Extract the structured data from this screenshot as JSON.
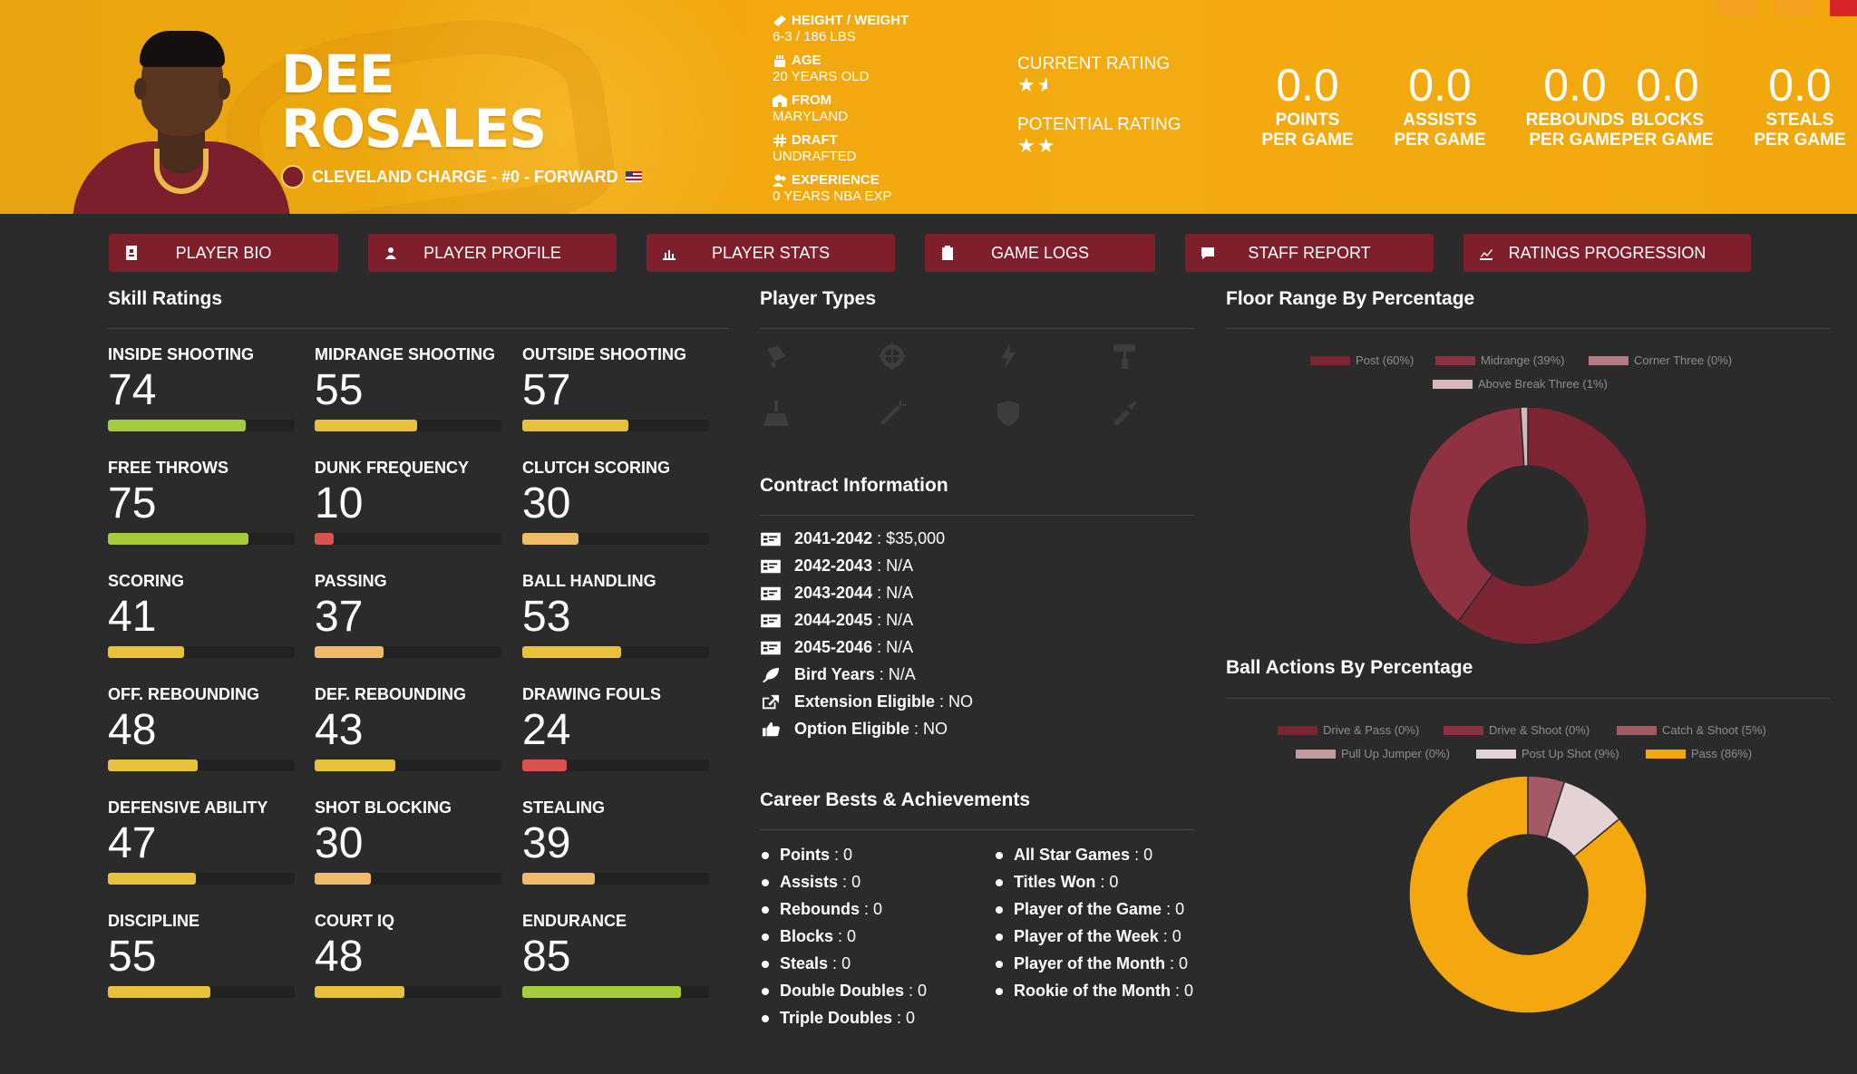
{
  "player": {
    "first_name": "DEE",
    "last_name": "ROSALES",
    "team_line": "CLEVELAND CHARGE - #0 - FORWARD"
  },
  "bio": [
    {
      "label": "HEIGHT / WEIGHT",
      "value": "6-3 / 186 LBS",
      "icon": "ruler-icon"
    },
    {
      "label": "AGE",
      "value": "20 YEARS OLD",
      "icon": "birthday-cake-icon"
    },
    {
      "label": "FROM",
      "value": "MARYLAND",
      "icon": "school-icon"
    },
    {
      "label": "DRAFT",
      "value": "UNDRAFTED",
      "icon": "hashtag-icon"
    },
    {
      "label": "EXPERIENCE",
      "value": "0 YEARS NBA EXP",
      "icon": "user-group-icon"
    }
  ],
  "ratings": {
    "current_label": "CURRENT RATING",
    "current_stars": 1.5,
    "potential_label": "POTENTIAL RATING",
    "potential_stars": 2
  },
  "stats": [
    {
      "value": "0.0",
      "line1": "POINTS",
      "line2": "PER GAME"
    },
    {
      "value": "0.0",
      "line1": "ASSISTS",
      "line2": "PER GAME"
    },
    {
      "value": "0.0",
      "line1": "REBOUNDS",
      "line2": "PER GAME"
    },
    {
      "value": "0.0",
      "line1": "BLOCKS",
      "line2": "PER GAME"
    },
    {
      "value": "0.0",
      "line1": "STEALS",
      "line2": "PER GAME"
    }
  ],
  "tabs": [
    {
      "label": "PLAYER BIO",
      "icon": "id-card-icon"
    },
    {
      "label": "PLAYER PROFILE",
      "icon": "users-icon"
    },
    {
      "label": "PLAYER STATS",
      "icon": "bar-chart-icon"
    },
    {
      "label": "GAME LOGS",
      "icon": "clipboard-icon"
    },
    {
      "label": "STAFF REPORT",
      "icon": "comment-icon"
    },
    {
      "label": "RATINGS PROGRESSION",
      "icon": "line-chart-icon"
    }
  ],
  "skills_title": "Skill Ratings",
  "skills": [
    {
      "name": "INSIDE SHOOTING",
      "value": "74",
      "color": "#a4cc3c"
    },
    {
      "name": "MIDRANGE SHOOTING",
      "value": "55",
      "color": "#e8c13c"
    },
    {
      "name": "OUTSIDE SHOOTING",
      "value": "57",
      "color": "#e8c13c"
    },
    {
      "name": "FREE THROWS",
      "value": "75",
      "color": "#a4cc3c"
    },
    {
      "name": "DUNK FREQUENCY",
      "value": "10",
      "color": "#d9534f"
    },
    {
      "name": "CLUTCH SCORING",
      "value": "30",
      "color": "#f0bb68"
    },
    {
      "name": "SCORING",
      "value": "41",
      "color": "#e8c13c"
    },
    {
      "name": "PASSING",
      "value": "37",
      "color": "#f0bb68"
    },
    {
      "name": "BALL HANDLING",
      "value": "53",
      "color": "#e8c13c"
    },
    {
      "name": "OFF. REBOUNDING",
      "value": "48",
      "color": "#e8c13c"
    },
    {
      "name": "DEF. REBOUNDING",
      "value": "43",
      "color": "#e8c13c"
    },
    {
      "name": "DRAWING FOULS",
      "value": "24",
      "color": "#d9534f"
    },
    {
      "name": "DEFENSIVE ABILITY",
      "value": "47",
      "color": "#e8c13c"
    },
    {
      "name": "SHOT BLOCKING",
      "value": "30",
      "color": "#f0bb68"
    },
    {
      "name": "STEALING",
      "value": "39",
      "color": "#f0bb68"
    },
    {
      "name": "DISCIPLINE",
      "value": "55",
      "color": "#e8c13c"
    },
    {
      "name": "COURT IQ",
      "value": "48",
      "color": "#e8c13c"
    },
    {
      "name": "ENDURANCE",
      "value": "85",
      "color": "#a4cc3c"
    }
  ],
  "player_types_title": "Player Types",
  "player_types": [
    "paint-roller-icon",
    "crosshairs-icon",
    "bolt-icon",
    "paint-roller-alt-icon",
    "broom-icon",
    "magic-wand-icon",
    "shield-icon",
    "syringe-icon"
  ],
  "contract_title": "Contract Information",
  "contract": [
    {
      "label": "2041-2042",
      "value": "$35,000",
      "icon": "money-check-icon"
    },
    {
      "label": "2042-2043",
      "value": "N/A",
      "icon": "money-check-icon"
    },
    {
      "label": "2043-2044",
      "value": "N/A",
      "icon": "money-check-icon"
    },
    {
      "label": "2044-2045",
      "value": "N/A",
      "icon": "money-check-icon"
    },
    {
      "label": "2045-2046",
      "value": "N/A",
      "icon": "money-check-icon"
    },
    {
      "label": "Bird Years",
      "value": "N/A",
      "icon": "feather-icon"
    },
    {
      "label": "Extension Eligible",
      "value": "NO",
      "icon": "external-link-icon"
    },
    {
      "label": "Option Eligible",
      "value": "NO",
      "icon": "thumbs-up-icon"
    }
  ],
  "career_title": "Career Bests & Achievements",
  "career_left": [
    {
      "label": "Points",
      "value": "0"
    },
    {
      "label": "Assists",
      "value": "0"
    },
    {
      "label": "Rebounds",
      "value": "0"
    },
    {
      "label": "Blocks",
      "value": "0"
    },
    {
      "label": "Steals",
      "value": "0"
    },
    {
      "label": "Double Doubles",
      "value": "0"
    },
    {
      "label": "Triple Doubles",
      "value": "0"
    }
  ],
  "career_right": [
    {
      "label": "All Star Games",
      "value": "0"
    },
    {
      "label": "Titles Won",
      "value": "0"
    },
    {
      "label": "Player of the Game",
      "value": "0"
    },
    {
      "label": "Player of the Week",
      "value": "0"
    },
    {
      "label": "Player of the Month",
      "value": "0"
    },
    {
      "label": "Rookie of the Month",
      "value": "0"
    }
  ],
  "floor_title": "Floor Range By Percentage",
  "ball_title": "Ball Actions By Percentage",
  "chart_data": [
    {
      "type": "pie",
      "title": "Floor Range By Percentage",
      "categories": [
        "Post (60%)",
        "Midrange (39%)",
        "Corner Three (0%)",
        "Above Break Three (1%)"
      ],
      "values": [
        60,
        39,
        0,
        1
      ],
      "colors": [
        "#7a2531",
        "#8e3140",
        "#b57b84",
        "#d8b7bb"
      ],
      "donut": true,
      "legend": "top"
    },
    {
      "type": "pie",
      "title": "Ball Actions By Percentage",
      "categories": [
        "Drive & Pass (0%)",
        "Drive & Shoot (0%)",
        "Catch & Shoot (5%)",
        "Pull Up Jumper (0%)",
        "Post Up Shot (9%)",
        "Pass (86%)"
      ],
      "values": [
        0,
        0,
        5,
        0,
        9,
        86
      ],
      "colors": [
        "#7a2531",
        "#8e3140",
        "#a45a64",
        "#c29aa0",
        "#e4d3d5",
        "#f4a70e"
      ],
      "donut": true,
      "legend": "top"
    }
  ]
}
